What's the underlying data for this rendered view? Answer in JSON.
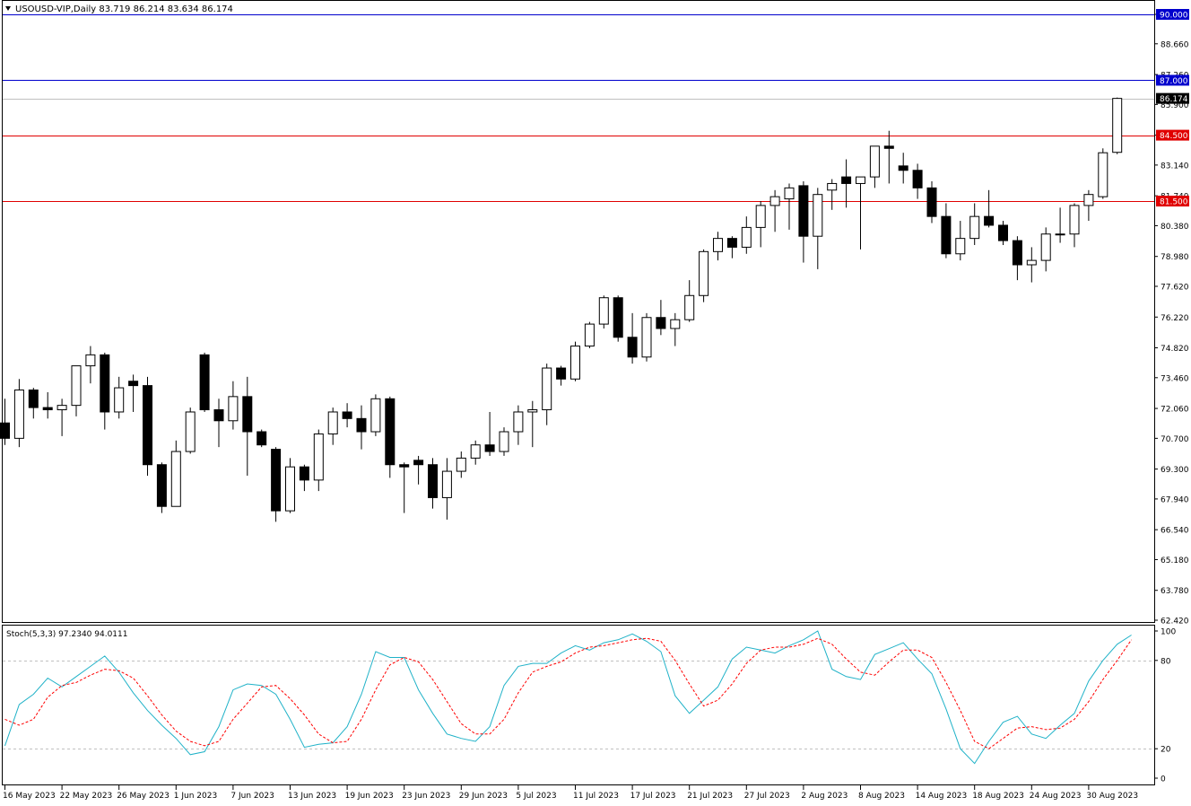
{
  "header": {
    "symbol_line": "USOUSD-VIP,Daily  83.719 86.214 83.634 86.174"
  },
  "colors": {
    "background": "#ffffff",
    "frame": "#000000",
    "candle_bull_fill": "#ffffff",
    "candle_bear_fill": "#000000",
    "level_blue": "#0000cd",
    "level_red": "#e00000",
    "current_price_line": "#c0c0c0",
    "stoch_main": "#20b2c8",
    "stoch_signal": "#ff0000",
    "stoch_levels": "#c0c0c0"
  },
  "chart_data": [
    {
      "type": "candlestick",
      "title": "USOUSD-VIP,Daily",
      "ohlc_header": "83.719 86.214 83.634 86.174",
      "ylim": [
        61.9,
        91.3
      ],
      "price_ticks": [
        "90.000",
        "88.660",
        "87.260",
        "85.900",
        "84.500",
        "83.140",
        "81.740",
        "80.380",
        "78.980",
        "77.620",
        "76.220",
        "74.820",
        "73.460",
        "72.060",
        "70.700",
        "69.300",
        "67.940",
        "66.540",
        "65.180",
        "63.780",
        "62.420"
      ],
      "x_date_labels": [
        {
          "label": "16 May 2023",
          "index": 0
        },
        {
          "label": "22 May 2023",
          "index": 4
        },
        {
          "label": "26 May 2023",
          "index": 8
        },
        {
          "label": "1 Jun 2023",
          "index": 12
        },
        {
          "label": "7 Jun 2023",
          "index": 16
        },
        {
          "label": "13 Jun 2023",
          "index": 20
        },
        {
          "label": "19 Jun 2023",
          "index": 24
        },
        {
          "label": "23 Jun 2023",
          "index": 28
        },
        {
          "label": "29 Jun 2023",
          "index": 32
        },
        {
          "label": "5 Jul 2023",
          "index": 36
        },
        {
          "label": "11 Jul 2023",
          "index": 40
        },
        {
          "label": "17 Jul 2023",
          "index": 44
        },
        {
          "label": "21 Jul 2023",
          "index": 48
        },
        {
          "label": "27 Jul 2023",
          "index": 52
        },
        {
          "label": "2 Aug 2023",
          "index": 56
        },
        {
          "label": "8 Aug 2023",
          "index": 60
        },
        {
          "label": "14 Aug 2023",
          "index": 64
        },
        {
          "label": "18 Aug 2023",
          "index": 68
        },
        {
          "label": "24 Aug 2023",
          "index": 72
        },
        {
          "label": "30 Aug 2023",
          "index": 76
        }
      ],
      "horizontal_levels": [
        {
          "value": 90.0,
          "label": "90.000",
          "color": "#0000cd"
        },
        {
          "value": 87.0,
          "label": "87.000",
          "color": "#0000cd"
        },
        {
          "value": 84.5,
          "label": "84.500",
          "color": "#e00000"
        },
        {
          "value": 81.5,
          "label": "81.500",
          "color": "#e00000"
        }
      ],
      "current_price": {
        "value": 86.174,
        "label": "86.174"
      },
      "candles": [
        {
          "o": 71.4,
          "h": 72.5,
          "l": 70.4,
          "c": 70.7
        },
        {
          "o": 70.7,
          "h": 73.4,
          "l": 70.3,
          "c": 72.9
        },
        {
          "o": 72.9,
          "h": 73.0,
          "l": 71.6,
          "c": 72.1
        },
        {
          "o": 72.1,
          "h": 72.8,
          "l": 71.6,
          "c": 72.0
        },
        {
          "o": 72.0,
          "h": 72.5,
          "l": 70.8,
          "c": 72.2
        },
        {
          "o": 72.2,
          "h": 74.0,
          "l": 71.7,
          "c": 74.0
        },
        {
          "o": 74.0,
          "h": 74.9,
          "l": 73.2,
          "c": 74.5
        },
        {
          "o": 74.5,
          "h": 74.6,
          "l": 71.1,
          "c": 71.9
        },
        {
          "o": 71.9,
          "h": 73.5,
          "l": 71.6,
          "c": 73.0
        },
        {
          "o": 73.3,
          "h": 73.6,
          "l": 71.9,
          "c": 73.1
        },
        {
          "o": 73.1,
          "h": 73.5,
          "l": 69.0,
          "c": 69.5
        },
        {
          "o": 69.5,
          "h": 69.6,
          "l": 67.3,
          "c": 67.6
        },
        {
          "o": 67.6,
          "h": 70.6,
          "l": 67.6,
          "c": 70.1
        },
        {
          "o": 70.1,
          "h": 72.1,
          "l": 70.0,
          "c": 71.9
        },
        {
          "o": 74.5,
          "h": 74.6,
          "l": 71.9,
          "c": 72.0
        },
        {
          "o": 72.0,
          "h": 72.5,
          "l": 70.3,
          "c": 71.5
        },
        {
          "o": 71.5,
          "h": 73.3,
          "l": 71.1,
          "c": 72.6
        },
        {
          "o": 72.6,
          "h": 73.5,
          "l": 69.0,
          "c": 71.0
        },
        {
          "o": 71.0,
          "h": 71.1,
          "l": 70.3,
          "c": 70.4
        },
        {
          "o": 70.2,
          "h": 70.3,
          "l": 66.9,
          "c": 67.4
        },
        {
          "o": 67.4,
          "h": 69.8,
          "l": 67.3,
          "c": 69.4
        },
        {
          "o": 69.4,
          "h": 69.5,
          "l": 68.3,
          "c": 68.8
        },
        {
          "o": 68.8,
          "h": 71.1,
          "l": 68.3,
          "c": 70.9
        },
        {
          "o": 70.9,
          "h": 72.1,
          "l": 70.4,
          "c": 71.9
        },
        {
          "o": 71.9,
          "h": 72.3,
          "l": 71.2,
          "c": 71.6
        },
        {
          "o": 71.6,
          "h": 72.2,
          "l": 70.2,
          "c": 71.0
        },
        {
          "o": 71.0,
          "h": 72.7,
          "l": 70.8,
          "c": 72.5
        },
        {
          "o": 72.5,
          "h": 72.6,
          "l": 68.9,
          "c": 69.5
        },
        {
          "o": 69.5,
          "h": 69.6,
          "l": 67.3,
          "c": 69.4
        },
        {
          "o": 69.7,
          "h": 69.9,
          "l": 68.6,
          "c": 69.5
        },
        {
          "o": 69.5,
          "h": 69.8,
          "l": 67.5,
          "c": 68.0
        },
        {
          "o": 68.0,
          "h": 69.8,
          "l": 67.0,
          "c": 69.2
        },
        {
          "o": 69.2,
          "h": 70.1,
          "l": 68.9,
          "c": 69.8
        },
        {
          "o": 69.8,
          "h": 70.6,
          "l": 69.5,
          "c": 70.4
        },
        {
          "o": 70.4,
          "h": 71.9,
          "l": 69.9,
          "c": 70.1
        },
        {
          "o": 70.1,
          "h": 71.2,
          "l": 69.9,
          "c": 71.0
        },
        {
          "o": 71.0,
          "h": 72.2,
          "l": 70.4,
          "c": 71.9
        },
        {
          "o": 71.9,
          "h": 72.4,
          "l": 70.3,
          "c": 72.0
        },
        {
          "o": 72.0,
          "h": 74.1,
          "l": 71.3,
          "c": 73.9
        },
        {
          "o": 73.9,
          "h": 74.0,
          "l": 73.1,
          "c": 73.4
        },
        {
          "o": 73.4,
          "h": 75.1,
          "l": 73.3,
          "c": 74.9
        },
        {
          "o": 74.9,
          "h": 76.0,
          "l": 74.8,
          "c": 75.9
        },
        {
          "o": 75.9,
          "h": 77.2,
          "l": 75.7,
          "c": 77.1
        },
        {
          "o": 77.1,
          "h": 77.2,
          "l": 75.1,
          "c": 75.3
        },
        {
          "o": 75.3,
          "h": 76.4,
          "l": 74.1,
          "c": 74.4
        },
        {
          "o": 74.4,
          "h": 76.4,
          "l": 74.2,
          "c": 76.2
        },
        {
          "o": 76.2,
          "h": 77.0,
          "l": 75.4,
          "c": 75.7
        },
        {
          "o": 75.7,
          "h": 76.4,
          "l": 74.9,
          "c": 76.1
        },
        {
          "o": 76.1,
          "h": 77.9,
          "l": 76.0,
          "c": 77.2
        },
        {
          "o": 77.2,
          "h": 79.3,
          "l": 76.9,
          "c": 79.2
        },
        {
          "o": 79.2,
          "h": 80.1,
          "l": 78.8,
          "c": 79.8
        },
        {
          "o": 79.8,
          "h": 79.9,
          "l": 78.9,
          "c": 79.4
        },
        {
          "o": 79.4,
          "h": 80.8,
          "l": 79.1,
          "c": 80.3
        },
        {
          "o": 80.3,
          "h": 81.5,
          "l": 79.4,
          "c": 81.3
        },
        {
          "o": 81.3,
          "h": 82.0,
          "l": 80.1,
          "c": 81.7
        },
        {
          "o": 81.6,
          "h": 82.3,
          "l": 80.2,
          "c": 82.1
        },
        {
          "o": 82.2,
          "h": 82.4,
          "l": 78.7,
          "c": 79.9
        },
        {
          "o": 79.9,
          "h": 82.1,
          "l": 78.4,
          "c": 81.8
        },
        {
          "o": 82.0,
          "h": 82.5,
          "l": 81.1,
          "c": 82.3
        },
        {
          "o": 82.6,
          "h": 83.4,
          "l": 81.2,
          "c": 82.3
        },
        {
          "o": 82.3,
          "h": 82.4,
          "l": 79.3,
          "c": 82.6
        },
        {
          "o": 82.6,
          "h": 83.9,
          "l": 82.1,
          "c": 84.0
        },
        {
          "o": 84.0,
          "h": 84.7,
          "l": 82.3,
          "c": 83.9
        },
        {
          "o": 83.1,
          "h": 83.7,
          "l": 82.3,
          "c": 82.9
        },
        {
          "o": 82.9,
          "h": 83.2,
          "l": 81.6,
          "c": 82.1
        },
        {
          "o": 82.1,
          "h": 82.4,
          "l": 80.5,
          "c": 80.8
        },
        {
          "o": 80.8,
          "h": 81.4,
          "l": 78.9,
          "c": 79.1
        },
        {
          "o": 79.1,
          "h": 80.6,
          "l": 78.8,
          "c": 79.8
        },
        {
          "o": 79.8,
          "h": 81.4,
          "l": 79.5,
          "c": 80.8
        },
        {
          "o": 80.8,
          "h": 82.0,
          "l": 80.3,
          "c": 80.4
        },
        {
          "o": 80.4,
          "h": 80.6,
          "l": 79.5,
          "c": 79.7
        },
        {
          "o": 79.7,
          "h": 79.9,
          "l": 77.9,
          "c": 78.6
        },
        {
          "o": 78.6,
          "h": 79.4,
          "l": 77.8,
          "c": 78.8
        },
        {
          "o": 78.8,
          "h": 80.3,
          "l": 78.3,
          "c": 80.0
        },
        {
          "o": 80.0,
          "h": 81.2,
          "l": 79.6,
          "c": 80.0
        },
        {
          "o": 80.0,
          "h": 81.4,
          "l": 79.4,
          "c": 81.3
        },
        {
          "o": 81.3,
          "h": 82.0,
          "l": 80.6,
          "c": 81.8
        },
        {
          "o": 81.7,
          "h": 83.9,
          "l": 81.6,
          "c": 83.7
        },
        {
          "o": 83.719,
          "h": 86.214,
          "l": 83.634,
          "c": 86.174
        }
      ]
    },
    {
      "type": "line",
      "title": "Stoch(5,3,3) 97.2340 94.0111",
      "ylim": [
        0,
        100
      ],
      "y_ticks": [
        "100",
        "80",
        "20",
        "0"
      ],
      "levels": [
        80,
        20
      ],
      "series": [
        {
          "name": "Stoch(5,3,3) 97.2340",
          "style": "solid",
          "values": [
            22,
            50,
            57,
            68,
            62,
            69,
            76,
            83,
            72,
            58,
            46,
            36,
            27,
            16,
            18,
            35,
            60,
            64,
            63,
            57,
            40,
            21,
            23,
            24,
            35,
            57,
            86,
            82,
            82,
            60,
            44,
            30,
            27,
            25,
            35,
            63,
            76,
            78,
            78,
            85,
            90,
            87,
            92,
            94,
            98,
            93,
            86,
            56,
            44,
            53,
            62,
            81,
            89,
            87,
            85,
            90,
            94,
            100,
            74,
            69,
            67,
            84,
            88,
            92,
            81,
            71,
            47,
            20,
            10,
            25,
            38,
            42,
            30,
            27,
            36,
            44,
            66,
            80,
            91,
            97.234
          ]
        },
        {
          "name": "Stoch(5,3,3) 94.0111",
          "style": "dashed",
          "values": [
            40,
            36,
            40,
            55,
            63,
            65,
            70,
            74,
            73,
            68,
            56,
            43,
            32,
            25,
            22,
            25,
            40,
            51,
            62,
            63,
            54,
            43,
            30,
            24,
            25,
            40,
            60,
            77,
            82,
            79,
            67,
            52,
            37,
            30,
            30,
            40,
            58,
            72,
            76,
            79,
            85,
            89,
            90,
            92,
            94,
            95,
            93,
            80,
            64,
            49,
            53,
            64,
            78,
            87,
            89,
            89,
            91,
            95,
            91,
            81,
            72,
            70,
            79,
            87,
            87,
            82,
            65,
            46,
            25,
            20,
            27,
            34,
            35,
            33,
            34,
            40,
            52,
            67,
            80,
            94.0111
          ]
        }
      ]
    }
  ]
}
